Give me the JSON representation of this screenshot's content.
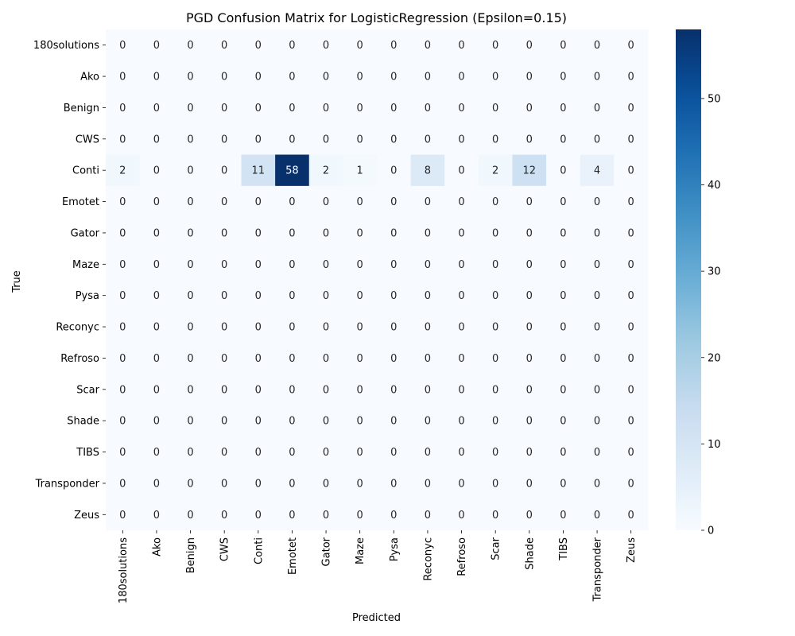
{
  "chart_data": {
    "type": "heatmap",
    "title": "PGD Confusion Matrix for LogisticRegression (Epsilon=0.15)",
    "xlabel": "Predicted",
    "ylabel": "True",
    "x_categories": [
      "180solutions",
      "Ako",
      "Benign",
      "CWS",
      "Conti",
      "Emotet",
      "Gator",
      "Maze",
      "Pysa",
      "Reconyc",
      "Refroso",
      "Scar",
      "Shade",
      "TIBS",
      "Transponder",
      "Zeus"
    ],
    "y_categories": [
      "180solutions",
      "Ako",
      "Benign",
      "CWS",
      "Conti",
      "Emotet",
      "Gator",
      "Maze",
      "Pysa",
      "Reconyc",
      "Refroso",
      "Scar",
      "Shade",
      "TIBS",
      "Transponder",
      "Zeus"
    ],
    "values": [
      [
        0,
        0,
        0,
        0,
        0,
        0,
        0,
        0,
        0,
        0,
        0,
        0,
        0,
        0,
        0,
        0
      ],
      [
        0,
        0,
        0,
        0,
        0,
        0,
        0,
        0,
        0,
        0,
        0,
        0,
        0,
        0,
        0,
        0
      ],
      [
        0,
        0,
        0,
        0,
        0,
        0,
        0,
        0,
        0,
        0,
        0,
        0,
        0,
        0,
        0,
        0
      ],
      [
        0,
        0,
        0,
        0,
        0,
        0,
        0,
        0,
        0,
        0,
        0,
        0,
        0,
        0,
        0,
        0
      ],
      [
        2,
        0,
        0,
        0,
        11,
        58,
        2,
        1,
        0,
        8,
        0,
        2,
        12,
        0,
        4,
        0
      ],
      [
        0,
        0,
        0,
        0,
        0,
        0,
        0,
        0,
        0,
        0,
        0,
        0,
        0,
        0,
        0,
        0
      ],
      [
        0,
        0,
        0,
        0,
        0,
        0,
        0,
        0,
        0,
        0,
        0,
        0,
        0,
        0,
        0,
        0
      ],
      [
        0,
        0,
        0,
        0,
        0,
        0,
        0,
        0,
        0,
        0,
        0,
        0,
        0,
        0,
        0,
        0
      ],
      [
        0,
        0,
        0,
        0,
        0,
        0,
        0,
        0,
        0,
        0,
        0,
        0,
        0,
        0,
        0,
        0
      ],
      [
        0,
        0,
        0,
        0,
        0,
        0,
        0,
        0,
        0,
        0,
        0,
        0,
        0,
        0,
        0,
        0
      ],
      [
        0,
        0,
        0,
        0,
        0,
        0,
        0,
        0,
        0,
        0,
        0,
        0,
        0,
        0,
        0,
        0
      ],
      [
        0,
        0,
        0,
        0,
        0,
        0,
        0,
        0,
        0,
        0,
        0,
        0,
        0,
        0,
        0,
        0
      ],
      [
        0,
        0,
        0,
        0,
        0,
        0,
        0,
        0,
        0,
        0,
        0,
        0,
        0,
        0,
        0,
        0
      ],
      [
        0,
        0,
        0,
        0,
        0,
        0,
        0,
        0,
        0,
        0,
        0,
        0,
        0,
        0,
        0,
        0
      ],
      [
        0,
        0,
        0,
        0,
        0,
        0,
        0,
        0,
        0,
        0,
        0,
        0,
        0,
        0,
        0,
        0
      ],
      [
        0,
        0,
        0,
        0,
        0,
        0,
        0,
        0,
        0,
        0,
        0,
        0,
        0,
        0,
        0,
        0
      ]
    ],
    "colorbar": {
      "min": 0,
      "max": 58,
      "ticks": [
        0,
        10,
        20,
        30,
        40,
        50
      ],
      "colormap": "Blues"
    },
    "annotations": "cell counts",
    "grid": false,
    "legend": "colorbar right"
  }
}
